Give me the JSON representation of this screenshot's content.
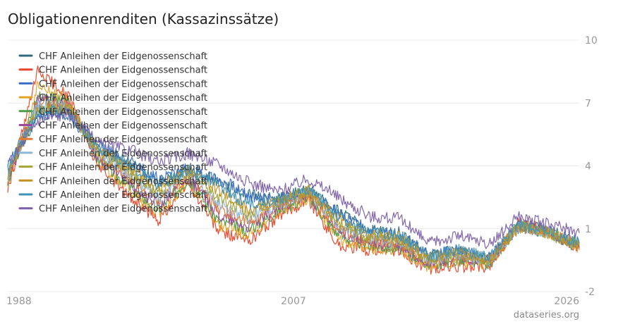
{
  "chart_data": {
    "type": "line",
    "title": "Obligationenrenditen (Kassazinssätze)",
    "y_ticks": [
      10,
      7,
      4,
      1,
      -2
    ],
    "x_ticks": [
      "1988",
      "2007",
      "2026"
    ],
    "ylim": [
      -2,
      10
    ],
    "xlim": [
      1988,
      2026
    ],
    "grid": true,
    "legend_position": "top-left",
    "series": [
      {
        "name": "CHF Anleihen der Eidgenossenschaft",
        "color": "#2e6b7e",
        "values": [
          [
            1988,
            3.9
          ],
          [
            1990,
            6.4
          ],
          [
            1992,
            6.6
          ],
          [
            1994,
            4.8
          ],
          [
            1996,
            4.2
          ],
          [
            1998,
            3.2
          ],
          [
            2000,
            3.8
          ],
          [
            2002,
            3.3
          ],
          [
            2004,
            2.6
          ],
          [
            2006,
            2.4
          ],
          [
            2008,
            2.9
          ],
          [
            2010,
            1.8
          ],
          [
            2012,
            0.9
          ],
          [
            2014,
            0.8
          ],
          [
            2016,
            -0.3
          ],
          [
            2018,
            0.0
          ],
          [
            2020,
            -0.4
          ],
          [
            2022,
            1.2
          ],
          [
            2024,
            0.9
          ],
          [
            2026,
            0.3
          ]
        ]
      },
      {
        "name": "CHF Anleihen der Eidgenossenschaft",
        "color": "#e8462c",
        "values": [
          [
            1988,
            2.8
          ],
          [
            1990,
            8.5
          ],
          [
            1992,
            7.4
          ],
          [
            1994,
            4.0
          ],
          [
            1996,
            2.6
          ],
          [
            1998,
            1.4
          ],
          [
            2000,
            3.2
          ],
          [
            2002,
            0.9
          ],
          [
            2004,
            0.4
          ],
          [
            2006,
            1.6
          ],
          [
            2008,
            2.4
          ],
          [
            2010,
            0.2
          ],
          [
            2012,
            0.0
          ],
          [
            2014,
            -0.1
          ],
          [
            2016,
            -0.9
          ],
          [
            2018,
            -0.8
          ],
          [
            2020,
            -0.8
          ],
          [
            2022,
            1.3
          ],
          [
            2024,
            0.9
          ],
          [
            2026,
            0.0
          ]
        ]
      },
      {
        "name": "CHF Anleihen der Eidgenossenschaft",
        "color": "#3a6fc4",
        "values": [
          [
            1988,
            4.1
          ],
          [
            1990,
            6.5
          ],
          [
            1992,
            6.4
          ],
          [
            1994,
            5.0
          ],
          [
            1996,
            4.3
          ],
          [
            1998,
            3.4
          ],
          [
            2000,
            3.9
          ],
          [
            2002,
            3.4
          ],
          [
            2004,
            2.6
          ],
          [
            2006,
            2.4
          ],
          [
            2008,
            2.8
          ],
          [
            2010,
            1.7
          ],
          [
            2012,
            0.8
          ],
          [
            2014,
            0.7
          ],
          [
            2016,
            -0.3
          ],
          [
            2018,
            0.0
          ],
          [
            2020,
            -0.4
          ],
          [
            2022,
            1.1
          ],
          [
            2024,
            0.8
          ],
          [
            2026,
            0.3
          ]
        ]
      },
      {
        "name": "CHF Anleihen der Eidgenossenschaft",
        "color": "#e2a424",
        "values": [
          [
            1988,
            3.1
          ],
          [
            1990,
            7.8
          ],
          [
            1992,
            7.1
          ],
          [
            1994,
            4.2
          ],
          [
            1996,
            2.9
          ],
          [
            1998,
            1.7
          ],
          [
            2000,
            3.3
          ],
          [
            2002,
            1.2
          ],
          [
            2004,
            0.7
          ],
          [
            2006,
            1.8
          ],
          [
            2008,
            2.5
          ],
          [
            2010,
            0.5
          ],
          [
            2012,
            0.1
          ],
          [
            2014,
            0.0
          ],
          [
            2016,
            -0.8
          ],
          [
            2018,
            -0.6
          ],
          [
            2020,
            -0.7
          ],
          [
            2022,
            1.2
          ],
          [
            2024,
            0.8
          ],
          [
            2026,
            0.1
          ]
        ]
      },
      {
        "name": "CHF Anleihen der Eidgenossenschaft",
        "color": "#4f9a4b",
        "values": [
          [
            1988,
            3.2
          ],
          [
            1990,
            7.4
          ],
          [
            1992,
            7.0
          ],
          [
            1994,
            4.3
          ],
          [
            1996,
            3.1
          ],
          [
            1998,
            1.9
          ],
          [
            2000,
            3.4
          ],
          [
            2002,
            1.4
          ],
          [
            2004,
            0.9
          ],
          [
            2006,
            1.9
          ],
          [
            2008,
            2.5
          ],
          [
            2010,
            0.7
          ],
          [
            2012,
            0.2
          ],
          [
            2014,
            0.1
          ],
          [
            2016,
            -0.7
          ],
          [
            2018,
            -0.5
          ],
          [
            2020,
            -0.7
          ],
          [
            2022,
            1.1
          ],
          [
            2024,
            0.8
          ],
          [
            2026,
            0.1
          ]
        ]
      },
      {
        "name": "CHF Anleihen der Eidgenossenschaft",
        "color": "#9b4a9c",
        "values": [
          [
            1988,
            3.3
          ],
          [
            1990,
            7.2
          ],
          [
            1992,
            6.9
          ],
          [
            1994,
            4.4
          ],
          [
            1996,
            3.3
          ],
          [
            1998,
            2.1
          ],
          [
            2000,
            3.5
          ],
          [
            2002,
            1.7
          ],
          [
            2004,
            1.1
          ],
          [
            2006,
            2.0
          ],
          [
            2008,
            2.6
          ],
          [
            2010,
            0.9
          ],
          [
            2012,
            0.3
          ],
          [
            2014,
            0.2
          ],
          [
            2016,
            -0.6
          ],
          [
            2018,
            -0.4
          ],
          [
            2020,
            -0.6
          ],
          [
            2022,
            1.1
          ],
          [
            2024,
            0.8
          ],
          [
            2026,
            0.1
          ]
        ]
      },
      {
        "name": "CHF Anleihen der Eidgenossenschaft",
        "color": "#e07b39",
        "values": [
          [
            1988,
            3.4
          ],
          [
            1990,
            7.0
          ],
          [
            1992,
            6.9
          ],
          [
            1994,
            4.5
          ],
          [
            1996,
            3.5
          ],
          [
            1998,
            2.3
          ],
          [
            2000,
            3.6
          ],
          [
            2002,
            2.0
          ],
          [
            2004,
            1.3
          ],
          [
            2006,
            2.1
          ],
          [
            2008,
            2.7
          ],
          [
            2010,
            1.0
          ],
          [
            2012,
            0.4
          ],
          [
            2014,
            0.3
          ],
          [
            2016,
            -0.5
          ],
          [
            2018,
            -0.3
          ],
          [
            2020,
            -0.6
          ],
          [
            2022,
            1.1
          ],
          [
            2024,
            0.8
          ],
          [
            2026,
            0.2
          ]
        ]
      },
      {
        "name": "CHF Anleihen der Eidgenossenschaft",
        "color": "#8ab8d8",
        "values": [
          [
            1988,
            3.5
          ],
          [
            1990,
            6.9
          ],
          [
            1992,
            6.8
          ],
          [
            1994,
            4.6
          ],
          [
            1996,
            3.7
          ],
          [
            1998,
            2.5
          ],
          [
            2000,
            3.7
          ],
          [
            2002,
            2.2
          ],
          [
            2004,
            1.5
          ],
          [
            2006,
            2.2
          ],
          [
            2008,
            2.7
          ],
          [
            2010,
            1.2
          ],
          [
            2012,
            0.5
          ],
          [
            2014,
            0.4
          ],
          [
            2016,
            -0.5
          ],
          [
            2018,
            -0.2
          ],
          [
            2020,
            -0.5
          ],
          [
            2022,
            1.1
          ],
          [
            2024,
            0.8
          ],
          [
            2026,
            0.2
          ]
        ]
      },
      {
        "name": "CHF Anleihen der Eidgenossenschaft",
        "color": "#a3a534",
        "values": [
          [
            1988,
            3.6
          ],
          [
            1990,
            6.8
          ],
          [
            1992,
            6.8
          ],
          [
            1994,
            4.7
          ],
          [
            1996,
            3.8
          ],
          [
            1998,
            2.7
          ],
          [
            2000,
            3.7
          ],
          [
            2002,
            2.5
          ],
          [
            2004,
            1.7
          ],
          [
            2006,
            2.3
          ],
          [
            2008,
            2.8
          ],
          [
            2010,
            1.3
          ],
          [
            2012,
            0.6
          ],
          [
            2014,
            0.5
          ],
          [
            2016,
            -0.4
          ],
          [
            2018,
            -0.2
          ],
          [
            2020,
            -0.5
          ],
          [
            2022,
            1.1
          ],
          [
            2024,
            0.8
          ],
          [
            2026,
            0.2
          ]
        ]
      },
      {
        "name": "CHF Anleihen der Eidgenossenschaft",
        "color": "#c28f21",
        "values": [
          [
            1988,
            3.7
          ],
          [
            1990,
            6.7
          ],
          [
            1992,
            6.7
          ],
          [
            1994,
            4.8
          ],
          [
            1996,
            4.0
          ],
          [
            1998,
            2.9
          ],
          [
            2000,
            3.8
          ],
          [
            2002,
            2.8
          ],
          [
            2004,
            1.9
          ],
          [
            2006,
            2.3
          ],
          [
            2008,
            2.8
          ],
          [
            2010,
            1.5
          ],
          [
            2012,
            0.7
          ],
          [
            2014,
            0.6
          ],
          [
            2016,
            -0.4
          ],
          [
            2018,
            -0.1
          ],
          [
            2020,
            -0.5
          ],
          [
            2022,
            1.1
          ],
          [
            2024,
            0.8
          ],
          [
            2026,
            0.2
          ]
        ]
      },
      {
        "name": "CHF Anleihen der Eidgenossenschaft",
        "color": "#3e94b8",
        "values": [
          [
            1988,
            3.8
          ],
          [
            1990,
            6.6
          ],
          [
            1992,
            6.6
          ],
          [
            1994,
            4.9
          ],
          [
            1996,
            4.1
          ],
          [
            1998,
            3.1
          ],
          [
            2000,
            3.8
          ],
          [
            2002,
            3.0
          ],
          [
            2004,
            2.2
          ],
          [
            2006,
            2.4
          ],
          [
            2008,
            2.9
          ],
          [
            2010,
            1.6
          ],
          [
            2012,
            0.8
          ],
          [
            2014,
            0.7
          ],
          [
            2016,
            -0.3
          ],
          [
            2018,
            0.0
          ],
          [
            2020,
            -0.4
          ],
          [
            2022,
            1.2
          ],
          [
            2024,
            0.9
          ],
          [
            2026,
            0.3
          ]
        ]
      },
      {
        "name": "CHF Anleihen der Eidgenossenschaft",
        "color": "#7b5fa8",
        "values": [
          [
            1988,
            4.0
          ],
          [
            1990,
            6.2
          ],
          [
            1992,
            6.5
          ],
          [
            1994,
            5.1
          ],
          [
            1996,
            4.8
          ],
          [
            1998,
            4.2
          ],
          [
            2000,
            4.6
          ],
          [
            2002,
            4.1
          ],
          [
            2004,
            3.2
          ],
          [
            2006,
            2.8
          ],
          [
            2008,
            3.4
          ],
          [
            2010,
            2.5
          ],
          [
            2012,
            1.6
          ],
          [
            2014,
            1.5
          ],
          [
            2016,
            0.3
          ],
          [
            2018,
            0.7
          ],
          [
            2020,
            0.2
          ],
          [
            2022,
            1.6
          ],
          [
            2024,
            1.2
          ],
          [
            2026,
            0.8
          ]
        ]
      }
    ]
  },
  "watermark": "dataseries.org"
}
